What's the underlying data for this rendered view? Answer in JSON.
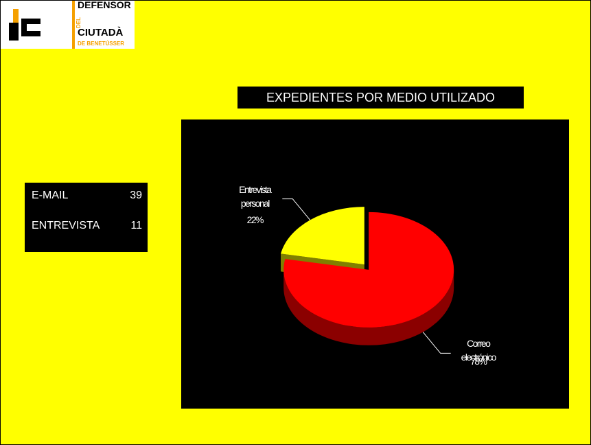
{
  "logo": {
    "line1": "DEFENSOR",
    "side": "DEL",
    "line2": "CIUTADÀ",
    "line3": "DE BENETÚSSER"
  },
  "table": {
    "rows": [
      [
        "E-MAIL",
        39
      ],
      [
        "ENTREVISTA",
        11
      ]
    ]
  },
  "chart_data": {
    "type": "pie",
    "title": "EXPEDIENTES POR MEDIO UTILIZADO",
    "categories": [
      "Correo electrónico",
      "Entrevista personal"
    ],
    "values": [
      78,
      22
    ],
    "value_labels": [
      "78%",
      "22%"
    ],
    "colors": [
      "#ff0000",
      "#ffff00"
    ],
    "side_colors": [
      "#8b0000",
      "#808000"
    ]
  }
}
